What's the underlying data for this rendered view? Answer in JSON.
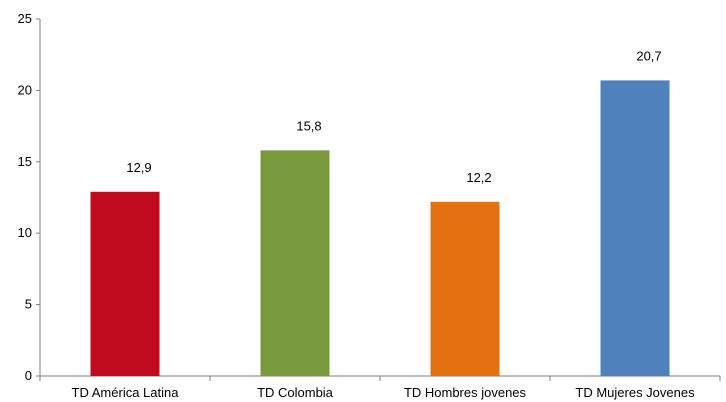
{
  "chart_data": {
    "type": "bar",
    "categories": [
      "TD América Latina",
      "TD Colombia",
      "TD Hombres jovenes",
      "TD Mujeres Jovenes"
    ],
    "values": [
      12.9,
      15.8,
      12.2,
      20.7
    ],
    "value_labels": [
      "12,9",
      "15,8",
      "12,2",
      "20,7"
    ],
    "colors": [
      "#C00A1E",
      "#789A3D",
      "#E5700F",
      "#4F81BD"
    ],
    "ylim": [
      0,
      25
    ],
    "yticks": [
      0,
      5,
      10,
      15,
      20,
      25
    ],
    "ytick_labels": [
      "0",
      "5",
      "10",
      "15",
      "20",
      "25"
    ],
    "grid": false,
    "legend": "none"
  }
}
